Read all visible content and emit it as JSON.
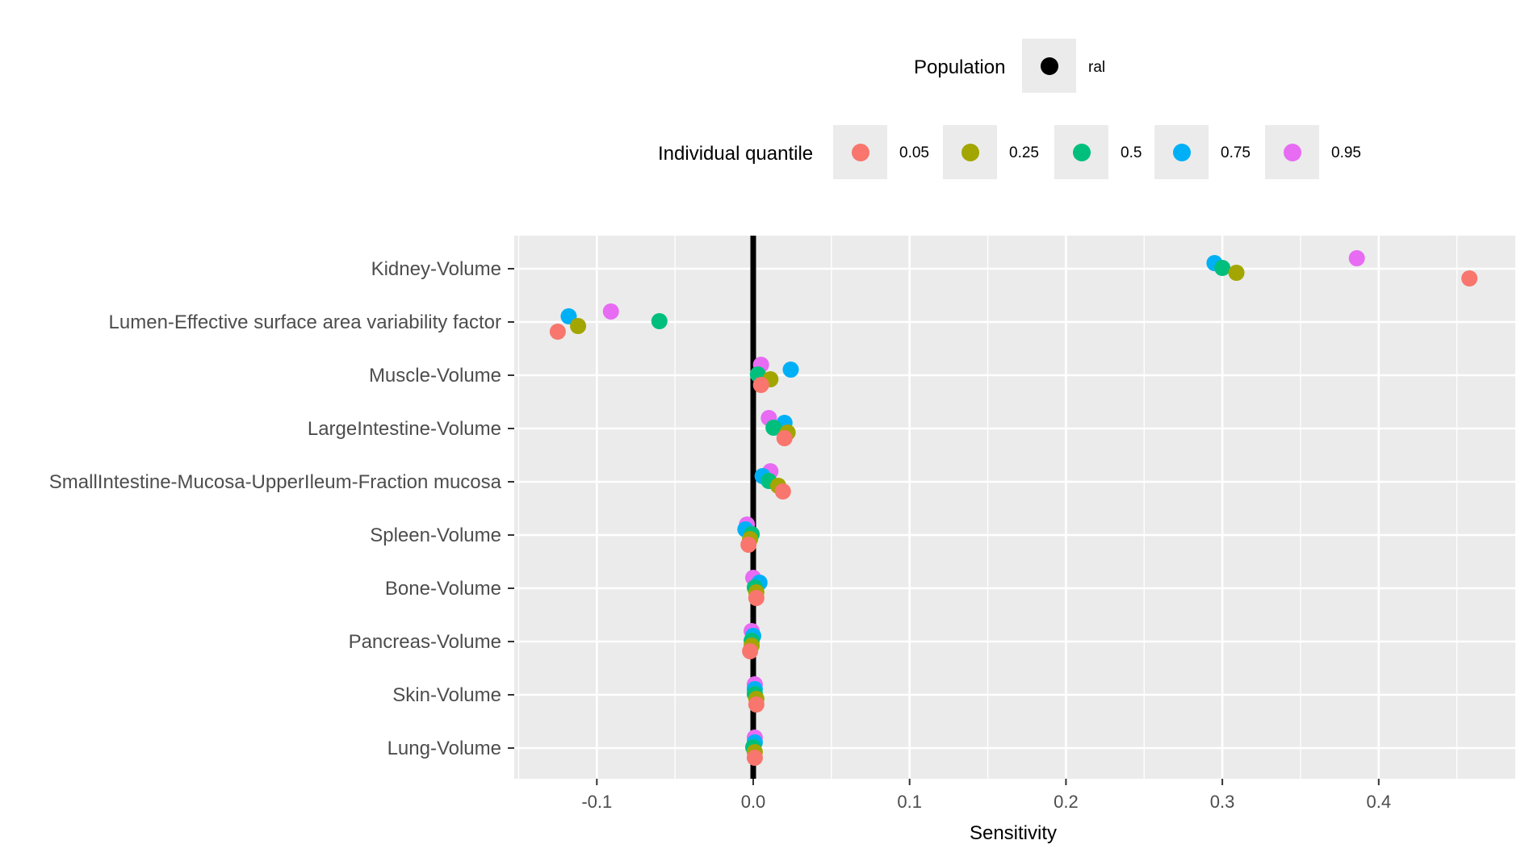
{
  "legend": {
    "population_title": "Population",
    "population_items": [
      {
        "label": "ral",
        "color": "#000000"
      }
    ],
    "quantile_title": "Individual quantile",
    "quantile_items": [
      {
        "label": "0.05",
        "color": "#F8766D"
      },
      {
        "label": "0.25",
        "color": "#A3A500"
      },
      {
        "label": "0.5",
        "color": "#00BF7D"
      },
      {
        "label": "0.75",
        "color": "#00B0F6"
      },
      {
        "label": "0.95",
        "color": "#E76BF3"
      }
    ]
  },
  "chart_data": {
    "type": "scatter",
    "title": "",
    "xlabel": "Sensitivity",
    "ylabel": "",
    "xlim": [
      -0.15,
      0.485
    ],
    "xticks": [
      -0.1,
      0.0,
      0.1,
      0.2,
      0.3,
      0.4
    ],
    "xtick_labels": [
      "-0.1",
      "0.0",
      "0.1",
      "0.2",
      "0.3",
      "0.4"
    ],
    "grid": true,
    "legend_position": "top",
    "reference_line": {
      "population": "ral",
      "x": 0.0,
      "color": "#000000"
    },
    "categories": [
      "Kidney-Volume",
      "Lumen-Effective surface area variability factor",
      "Muscle-Volume",
      "LargeIntestine-Volume",
      "SmallIntestine-Mucosa-UpperIleum-Fraction mucosa",
      "Spleen-Volume",
      "Bone-Volume",
      "Pancreas-Volume",
      "Skin-Volume",
      "Lung-Volume"
    ],
    "series": [
      {
        "name": "0.05",
        "color": "#F8766D",
        "values": [
          0.458,
          -0.125,
          0.005,
          0.02,
          0.019,
          -0.003,
          0.002,
          -0.002,
          0.002,
          0.001
        ]
      },
      {
        "name": "0.25",
        "color": "#A3A500",
        "values": [
          0.309,
          -0.112,
          0.011,
          0.022,
          0.016,
          -0.002,
          0.002,
          -0.001,
          0.002,
          0.001
        ]
      },
      {
        "name": "0.5",
        "color": "#00BF7D",
        "values": [
          0.3,
          -0.06,
          0.003,
          0.013,
          0.01,
          -0.001,
          0.001,
          -0.001,
          0.001,
          0.0
        ]
      },
      {
        "name": "0.75",
        "color": "#00B0F6",
        "values": [
          0.295,
          -0.118,
          0.024,
          0.02,
          0.006,
          -0.005,
          0.004,
          0.0,
          0.001,
          0.001
        ]
      },
      {
        "name": "0.95",
        "color": "#E76BF3",
        "values": [
          0.386,
          -0.091,
          0.005,
          0.01,
          0.011,
          -0.004,
          0.0,
          -0.001,
          0.001,
          0.001
        ]
      }
    ]
  }
}
